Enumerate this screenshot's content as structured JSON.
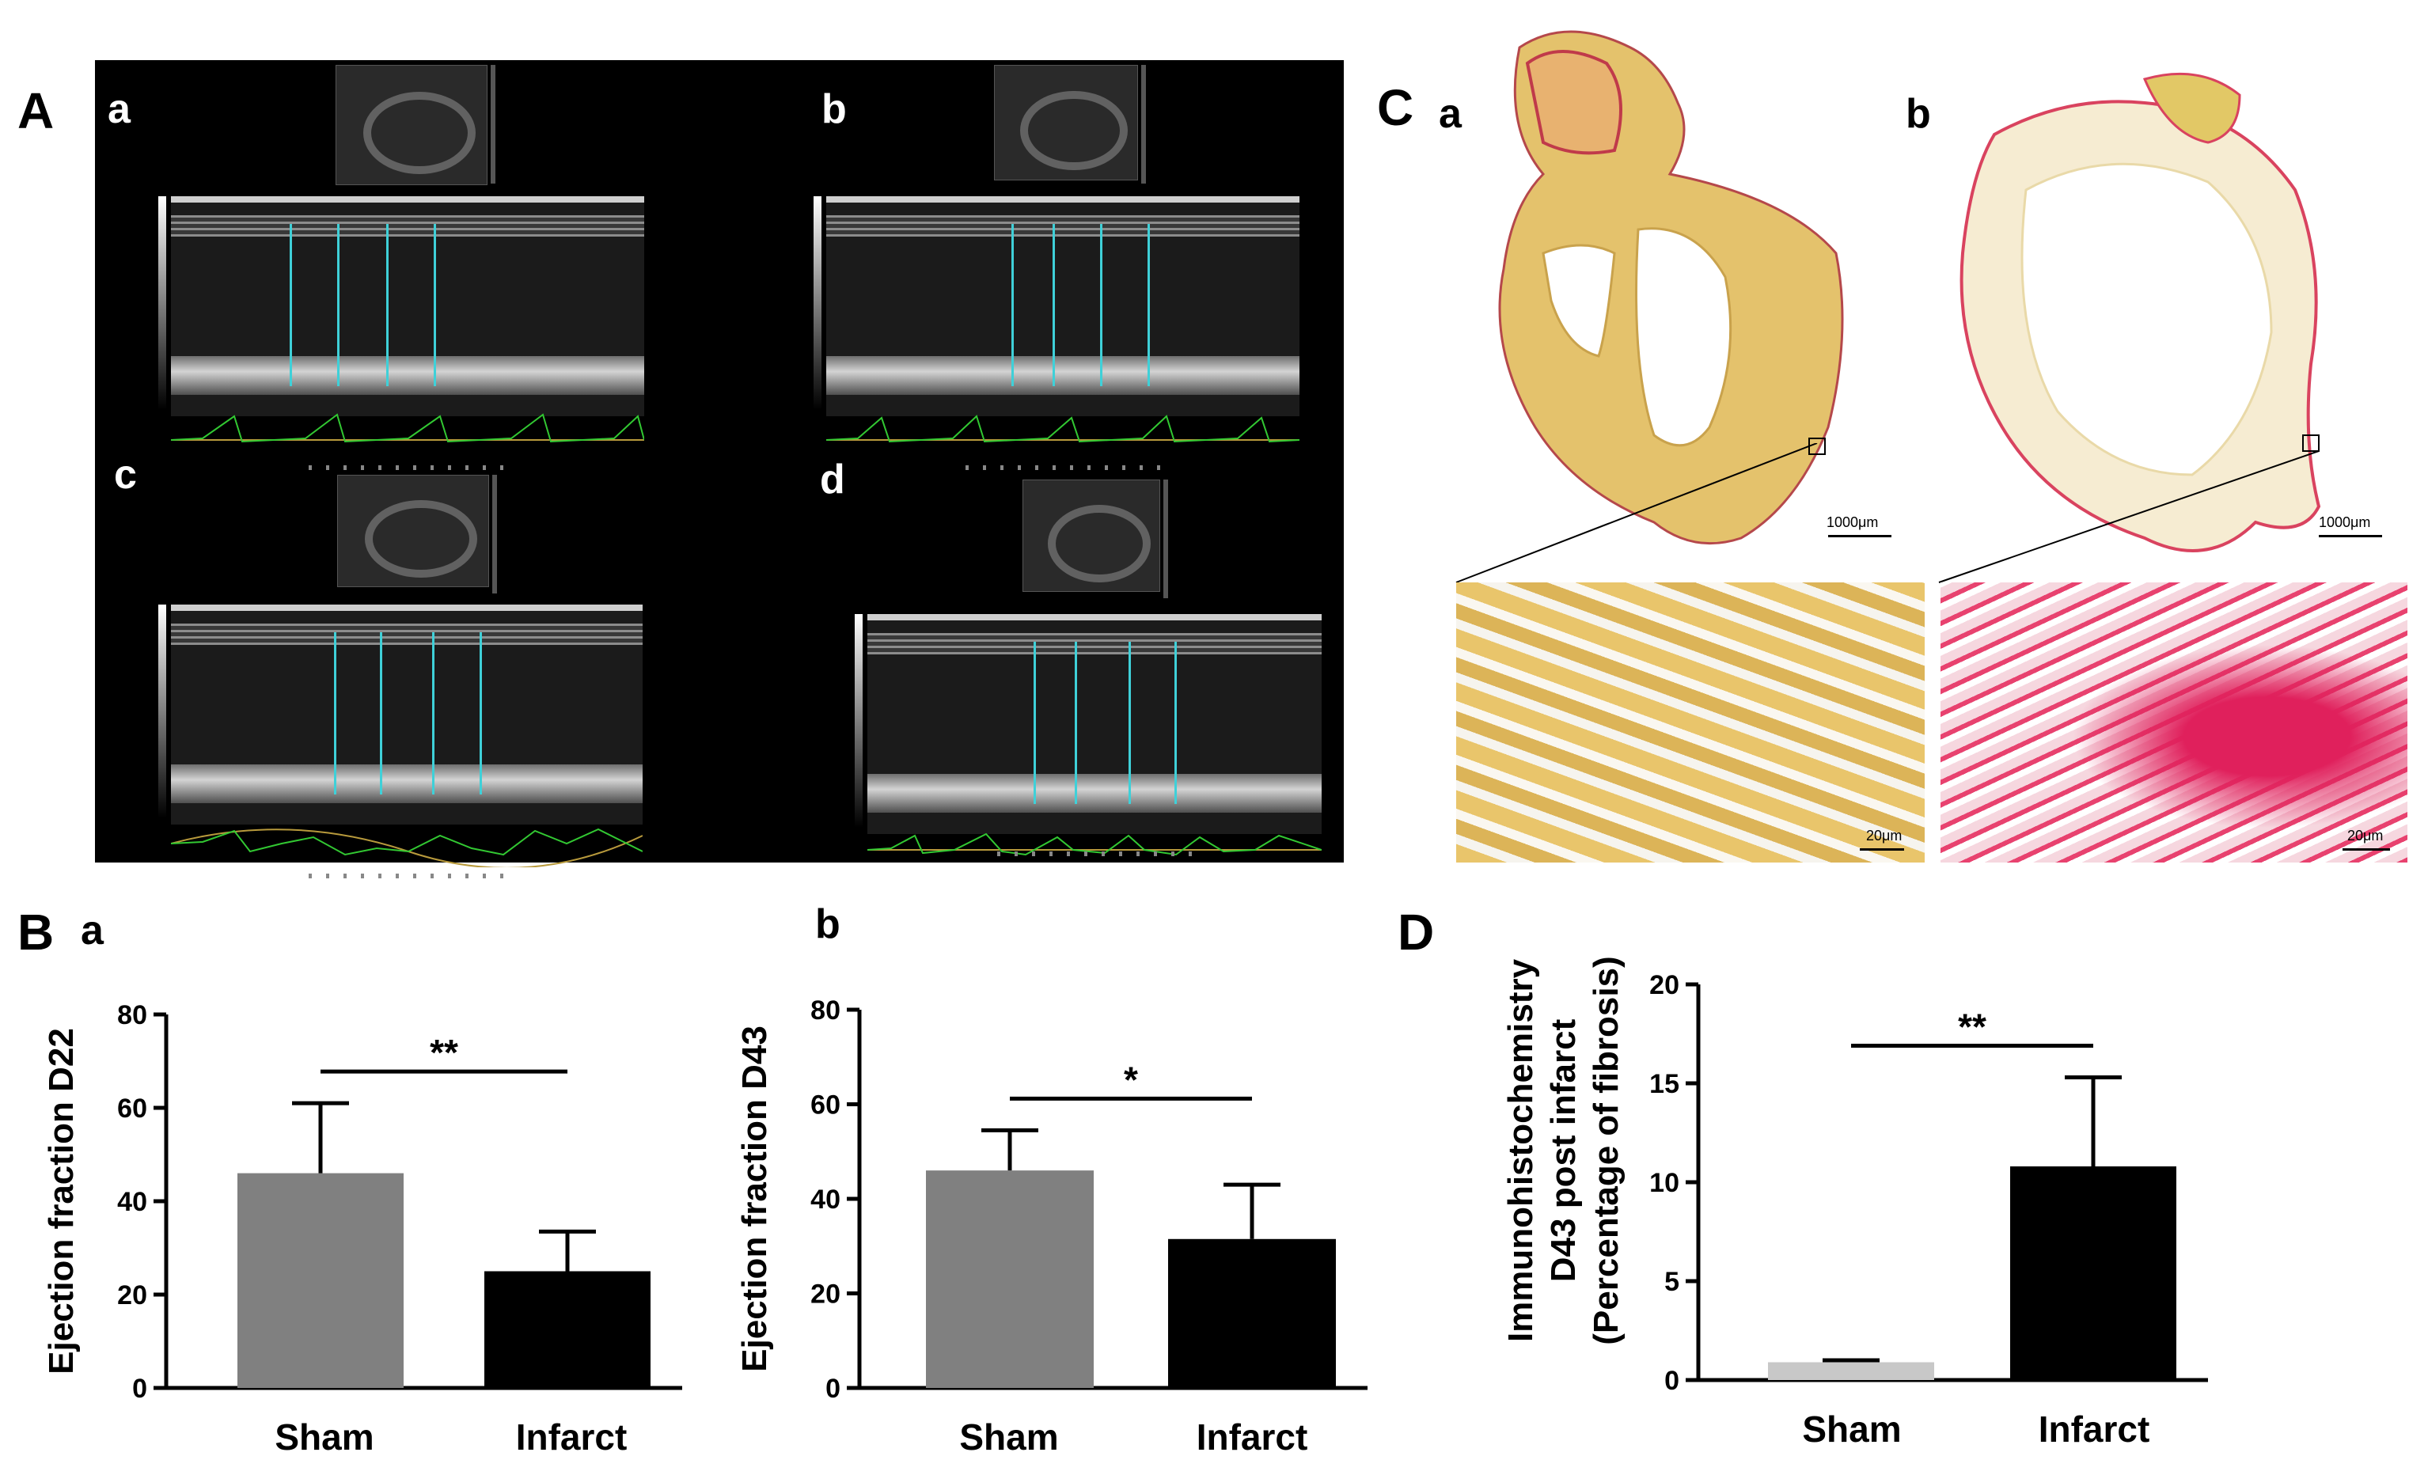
{
  "panels": {
    "A": {
      "letter": "A",
      "subpanels": [
        {
          "letter": "a"
        },
        {
          "letter": "b"
        },
        {
          "letter": "c"
        },
        {
          "letter": "d"
        }
      ]
    },
    "C": {
      "letter": "C",
      "subpanels": [
        {
          "letter": "a",
          "scale_whole": "1000μm",
          "scale_zoom": "20μm"
        },
        {
          "letter": "b",
          "scale_whole": "1000μm",
          "scale_zoom": "20μm"
        }
      ]
    },
    "B": {
      "letter": "B",
      "sub_a": "a",
      "sub_b": "b"
    },
    "D": {
      "letter": "D"
    }
  },
  "colors": {
    "sham_B": "#808080",
    "sham_D": "#c8c8c8",
    "infarct": "#000000",
    "ecg": "#32c832",
    "caliper": "#3fd0d8"
  },
  "chart_data": [
    {
      "type": "bar",
      "panel": "B-a",
      "categories": [
        "Sham",
        "Infarct"
      ],
      "values": [
        46,
        25
      ],
      "errors": [
        15,
        8.5
      ],
      "ylabel": "Ejection fraction D22",
      "ylim": [
        0,
        80
      ],
      "yticks": [
        0,
        20,
        40,
        60,
        80
      ],
      "significance": "**",
      "colors": [
        "#808080",
        "#000000"
      ]
    },
    {
      "type": "bar",
      "panel": "B-b",
      "categories": [
        "Sham",
        "Infarct"
      ],
      "values": [
        46,
        31.5
      ],
      "errors": [
        8.5,
        11.5
      ],
      "ylabel": "Ejection fraction D43",
      "ylim": [
        0,
        80
      ],
      "yticks": [
        0,
        20,
        40,
        60,
        80
      ],
      "significance": "*",
      "colors": [
        "#808080",
        "#000000"
      ]
    },
    {
      "type": "bar",
      "panel": "D",
      "categories": [
        "Sham",
        "Infarct"
      ],
      "values": [
        0.9,
        10.8
      ],
      "errors": [
        0.1,
        4.5
      ],
      "ylabel_lines": [
        "Immunohistochemistry",
        "D43 post infarct",
        "(Percentage of fibrosis)"
      ],
      "ylim": [
        0,
        20
      ],
      "yticks": [
        0,
        5,
        10,
        15,
        20
      ],
      "significance": "**",
      "colors": [
        "#c8c8c8",
        "#000000"
      ]
    }
  ]
}
